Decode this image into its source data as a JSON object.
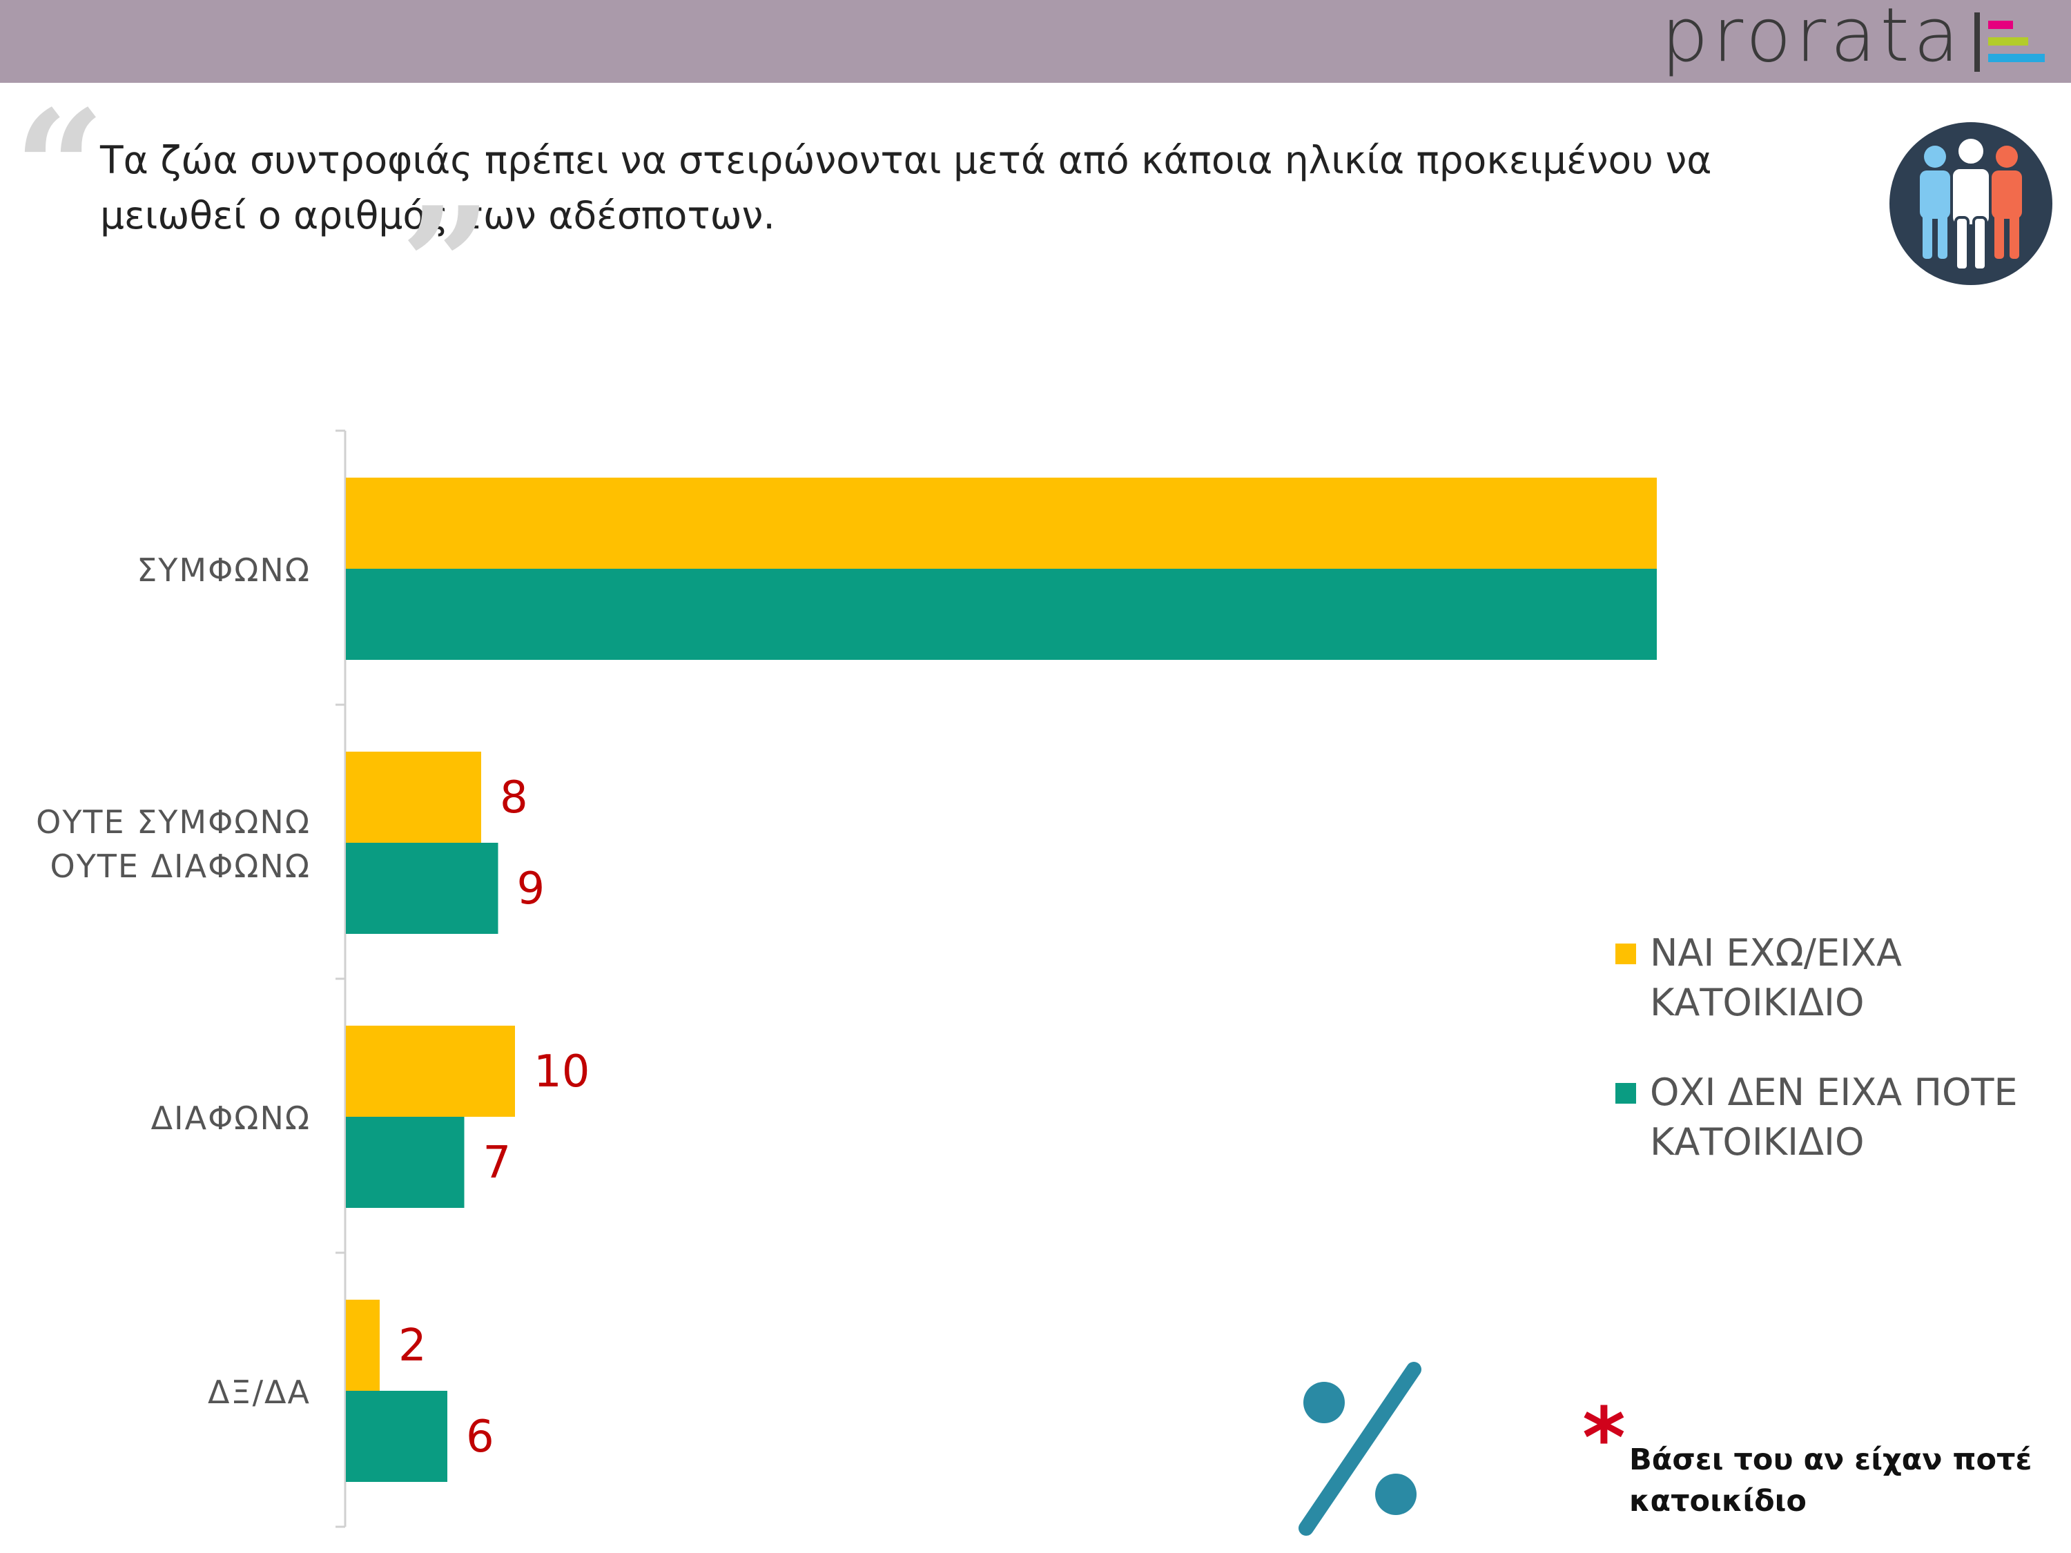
{
  "header": {
    "logo_text": "prorata",
    "logo_stripe_colors": [
      "#e6007e",
      "#b3cc2a",
      "#26a9e0"
    ]
  },
  "question": {
    "text": "Τα ζώα συντροφιάς πρέπει να στειρώνονται μετά από κάποια ηλικία προκειμένου να μειωθεί ο αριθμός των αδέσποτων.",
    "quote_open": "“",
    "quote_close": "”"
  },
  "icons": {
    "people": "people-group-icon",
    "percent": "percent-icon"
  },
  "footnote": {
    "star": "*",
    "text": "Βάσει του αν είχαν ποτέ κατοικίδιο"
  },
  "chart_data": {
    "type": "bar",
    "orientation": "horizontal",
    "categories": [
      "ΣΥΜΦΩΝΩ",
      "ΟΥΤΕ ΣΥΜΦΩΝΩ ΟΥΤΕ ΔΙΑΦΩΝΩ",
      "ΔΙΑΦΩΝΩ",
      "ΔΞ/ΔΑ"
    ],
    "series": [
      {
        "name": "ΝΑΙ ΕΧΩ/ΕΙΧΑ ΚΑΤΟΙΚΙΔΙΟ",
        "color": "#ffc000",
        "values": [
          80,
          8,
          10,
          2
        ]
      },
      {
        "name": "ΟΧΙ ΔΕΝ ΕΙΧΑ ΠΟΤΕ ΚΑΤΟΙΚΙΔΙΟ",
        "color": "#0a9c82",
        "values": [
          78,
          9,
          7,
          6
        ]
      }
    ],
    "xlim": [
      0,
      100
    ],
    "grid": false,
    "data_label_color": "#c00000",
    "legend_position": "right"
  }
}
